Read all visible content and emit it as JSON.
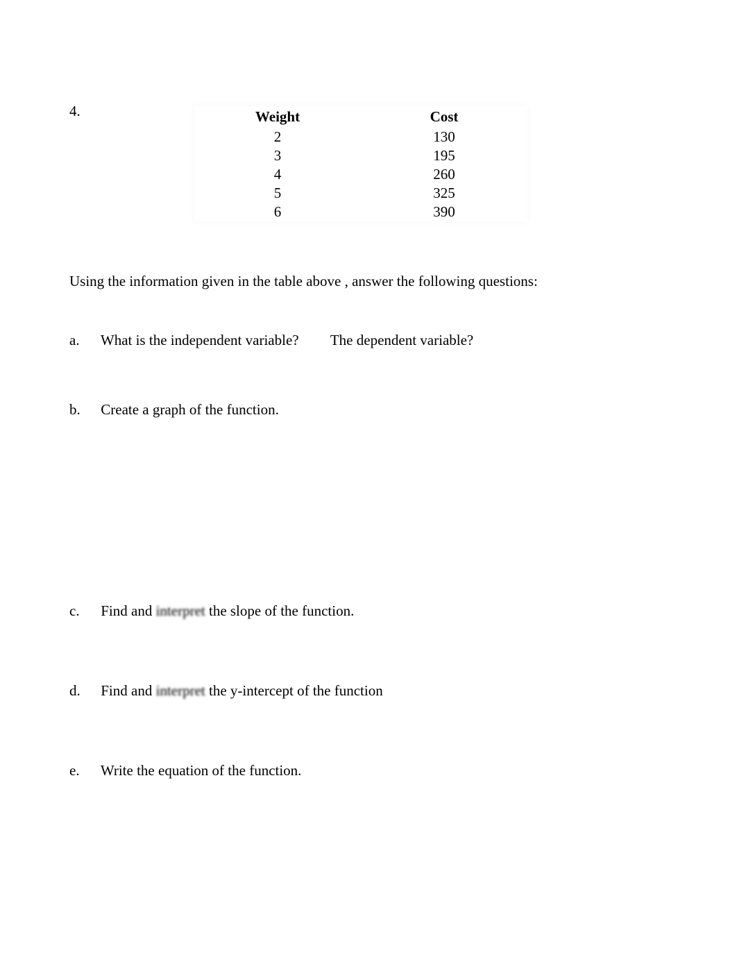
{
  "question_number": "4.",
  "table": {
    "columns": [
      "Weight",
      "Cost"
    ],
    "rows": [
      [
        "2",
        "130"
      ],
      [
        "3",
        "195"
      ],
      [
        "4",
        "260"
      ],
      [
        "5",
        "325"
      ],
      [
        "6",
        "390"
      ]
    ],
    "header_fontsize": 21,
    "cell_fontsize": 21,
    "background_color": "#ffffff",
    "text_color": "#000000"
  },
  "intro_text": "Using the information given in the table above , answer the following questions:",
  "questions": {
    "a": {
      "letter": "a.",
      "text1": "What is the independent variable?",
      "text2": "The dependent variable?"
    },
    "b": {
      "letter": "b.",
      "text": "Create a graph of the function."
    },
    "c": {
      "letter": "c.",
      "before": "Find and ",
      "blurred": "interpret",
      "after": " the slope of the function."
    },
    "d": {
      "letter": "d.",
      "before": "Find and ",
      "blurred": "interpret",
      "after": " the y-intercept of the function"
    },
    "e": {
      "letter": "e.",
      "text": "Write the equation of the function."
    }
  }
}
